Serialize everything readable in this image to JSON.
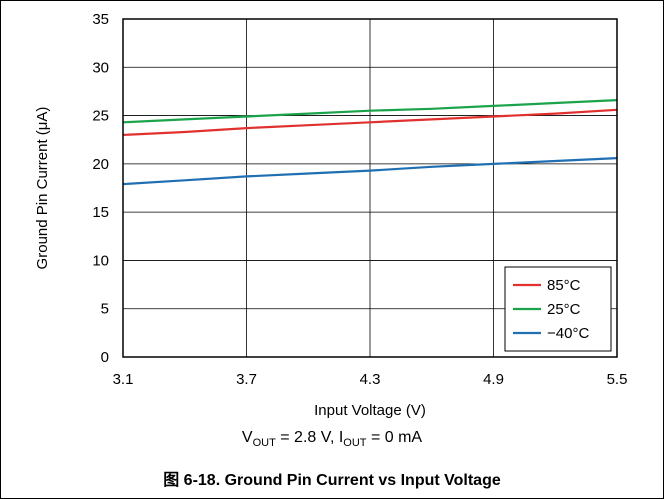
{
  "chart_data": {
    "type": "line",
    "xlabel": "Input Voltage (V)",
    "ylabel": "Ground Pin Current (μA)",
    "x_ticks": [
      "3.1",
      "3.7",
      "4.3",
      "4.9",
      "5.5"
    ],
    "y_ticks": [
      "0",
      "5",
      "10",
      "15",
      "20",
      "25",
      "30",
      "35"
    ],
    "xlim": [
      3.1,
      5.5
    ],
    "ylim": [
      0,
      35
    ],
    "grid": true,
    "legend_position": "bottom-right",
    "x": [
      3.1,
      3.4,
      3.7,
      4.0,
      4.3,
      4.6,
      4.9,
      5.2,
      5.5
    ],
    "series": [
      {
        "name": "85°C",
        "color": "#e0312f",
        "values": [
          23.0,
          23.3,
          23.7,
          24.0,
          24.3,
          24.6,
          24.9,
          25.2,
          25.6
        ]
      },
      {
        "name": "25°C",
        "color": "#1aa34a",
        "values": [
          24.3,
          24.6,
          24.9,
          25.2,
          25.5,
          25.7,
          26.0,
          26.3,
          26.6
        ]
      },
      {
        "name": "−40°C",
        "color": "#1f6fb2",
        "values": [
          17.9,
          18.3,
          18.7,
          19.0,
          19.3,
          19.7,
          20.0,
          20.3,
          20.6
        ]
      }
    ]
  },
  "conditions": {
    "v_out_label": "V",
    "v_out_sub": "OUT",
    "v_out_value": " = 2.8 V, ",
    "i_out_label": "I",
    "i_out_sub": "OUT",
    "i_out_value": " = 0 mA"
  },
  "caption": "图 6-18. Ground Pin Current vs Input Voltage"
}
